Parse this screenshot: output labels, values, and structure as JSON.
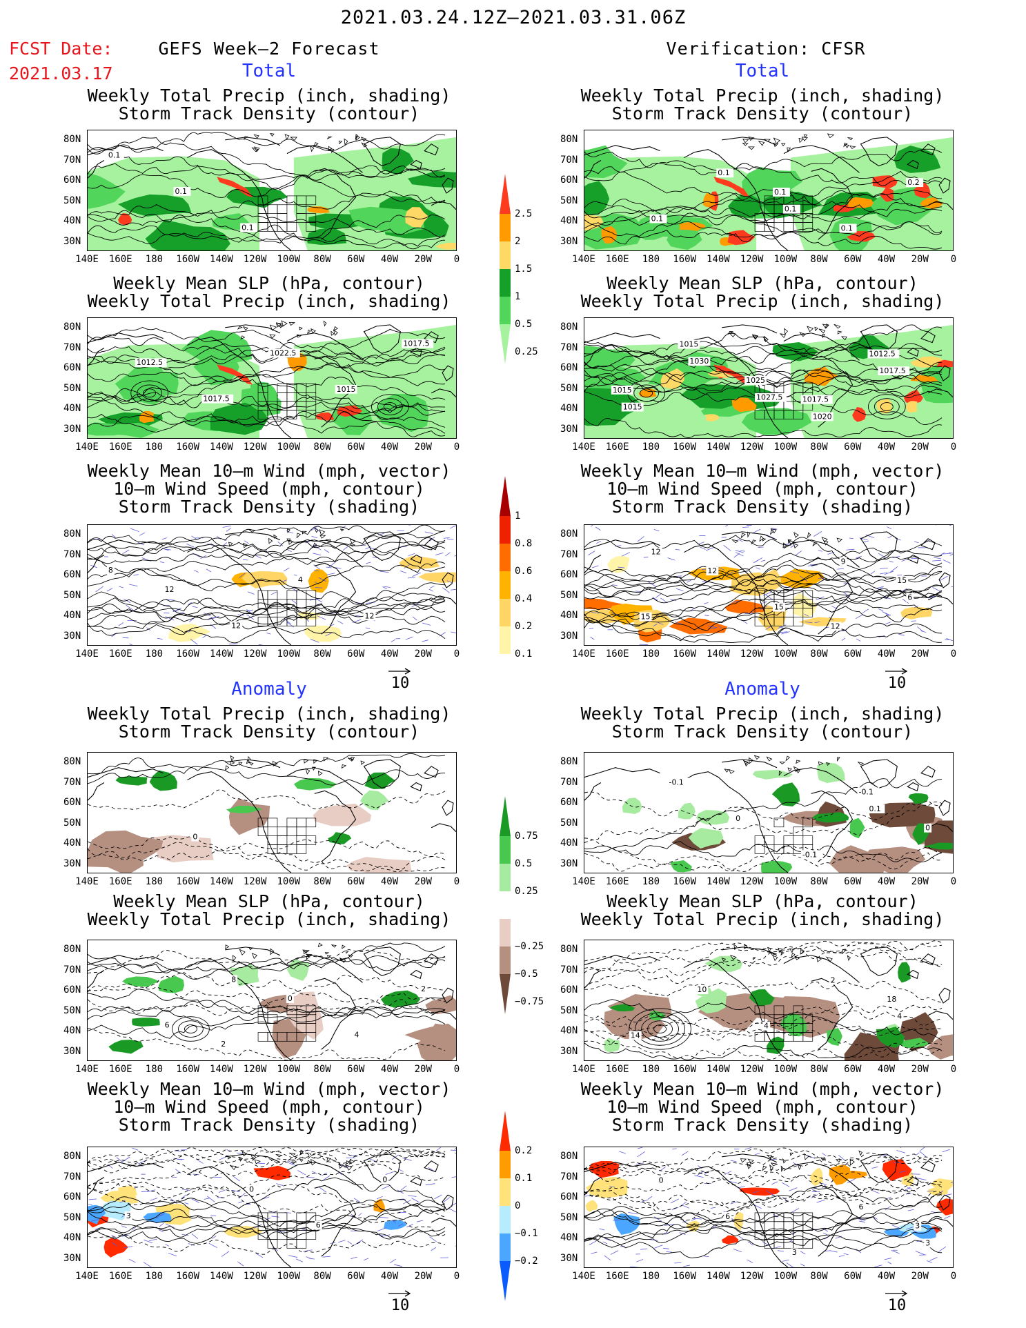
{
  "header": {
    "date_range": "2021.03.24.12Z–2021.03.31.06Z",
    "fcst_label": "FCST Date:",
    "fcst_date": "2021.03.17",
    "left_title": "GEFS Week–2 Forecast",
    "right_title": "Verification: CFSR",
    "total_label": "Total",
    "anomaly_label": "Anomaly"
  },
  "titles": {
    "precip_storm": [
      "Weekly Total Precip (inch, shading)",
      "Storm Track Density (contour)"
    ],
    "slp_precip": [
      "Weekly Mean SLP (hPa, contour)",
      "Weekly Total Precip (inch, shading)"
    ],
    "wind": [
      "Weekly Mean 10–m Wind (mph, vector)",
      "10–m Wind Speed (mph, contour)",
      "Storm Track Density (shading)"
    ]
  },
  "axes": {
    "lat_labels": [
      "80N",
      "70N",
      "60N",
      "50N",
      "40N",
      "30N"
    ],
    "lon_labels": [
      "140E",
      "160E",
      "180",
      "160W",
      "140W",
      "120W",
      "100W",
      "80W",
      "60W",
      "40W",
      "20W",
      "0"
    ]
  },
  "vector_ref": "10",
  "colorbars": {
    "precip_total": {
      "labels": [
        "2.5",
        "2",
        "1.5",
        "1",
        "0.5",
        "0.25"
      ],
      "colors": [
        "#ff3b1f",
        "#ff9a00",
        "#ffd966",
        "#16a029",
        "#51d55a",
        "#a6f29e"
      ]
    },
    "storm_total": {
      "labels": [
        "1",
        "0.8",
        "0.6",
        "0.4",
        "0.2",
        "0.1"
      ],
      "colors": [
        "#a80000",
        "#ee2200",
        "#ff6d00",
        "#ffb300",
        "#ffd666",
        "#fff4a8"
      ]
    },
    "precip_anom": {
      "labels": [
        "0.75",
        "0.5",
        "0.25",
        "−0.25",
        "−0.5",
        "−0.75"
      ],
      "colors": [
        "#1a9a24",
        "#49c84f",
        "#a6eb9f",
        "#e7cdc4",
        "#b58f80",
        "#6e4a3a"
      ]
    },
    "storm_anom": {
      "labels": [
        "0.2",
        "0.1",
        "0",
        "−0.1",
        "−0.2"
      ],
      "colors": [
        "#ff2a00",
        "#ff9c00",
        "#ffe27a",
        "#b7ecff",
        "#4aa6ff",
        "#0a5cff"
      ]
    }
  },
  "contour_labels": {
    "p1": [
      "0.1",
      "0.1",
      "0.1"
    ],
    "p2": [
      "1012.5",
      "1017.5",
      "1022.5",
      "1015",
      "1017.5"
    ],
    "p3": [
      "12",
      "12",
      "4",
      "12",
      "8"
    ],
    "r1": [
      "0.1",
      "0.1",
      "0.2",
      "0.1",
      "0.1",
      "0.1"
    ],
    "r2": [
      "1017.5",
      "1012.5",
      "1015",
      "1015",
      "1025",
      "1020",
      "1017.5",
      "1015",
      "1030",
      "1027.5"
    ],
    "r3": [
      "12",
      "15",
      "15",
      "12",
      "15",
      "9",
      "6",
      "12"
    ],
    "a1": [
      "0"
    ],
    "a2": [
      "2",
      "0",
      "4",
      "2",
      "6",
      "8"
    ],
    "a3": [
      "0",
      "6",
      "0",
      "3"
    ],
    "b1": [
      "-0.1",
      "0",
      "-0.1",
      "0",
      "-0.1",
      "0.1"
    ],
    "b2": [
      "18",
      "14",
      "10",
      "4",
      "2",
      "4"
    ],
    "b3": [
      "3",
      "0",
      "6",
      "3",
      "6",
      "3"
    ]
  }
}
